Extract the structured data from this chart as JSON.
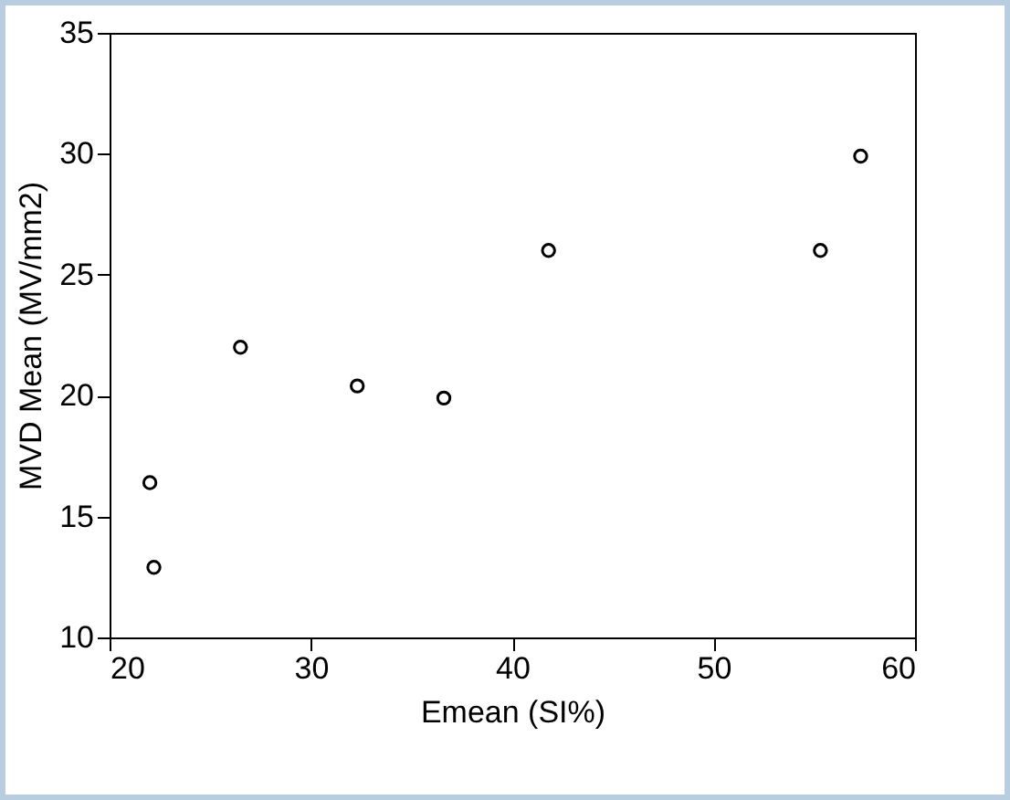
{
  "chart_data": {
    "type": "scatter",
    "xlabel": "Emean (SI%)",
    "ylabel": "MVD Mean (MV/mm2)",
    "x": [
      22.0,
      22.2,
      26.5,
      32.3,
      36.6,
      41.8,
      55.3,
      57.3
    ],
    "values": [
      16.4,
      12.9,
      22.0,
      20.4,
      19.9,
      26.0,
      26.0,
      29.9
    ],
    "color": "#000000",
    "marker": "circle",
    "xlim": [
      20,
      60
    ],
    "xticks": [
      20,
      30,
      40,
      50,
      60
    ],
    "ylim": [
      10,
      35
    ],
    "yticks": [
      10,
      15,
      20,
      25,
      30,
      35
    ],
    "grid": false
  }
}
